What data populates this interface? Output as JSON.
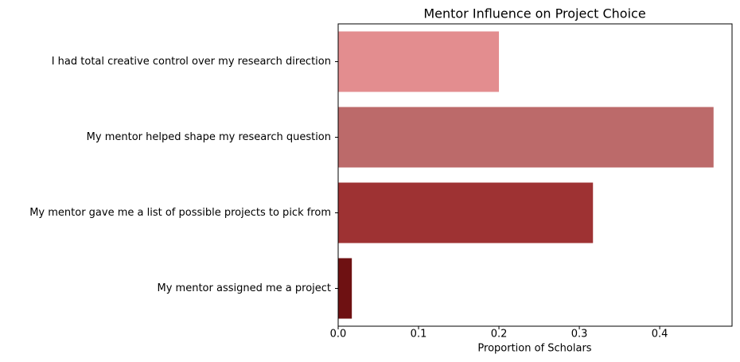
{
  "chart_data": {
    "type": "barh",
    "title": "Mentor Influence on Project Choice",
    "x_label": "Proportion of Scholars",
    "categories": [
      "I had total creative control over my research direction",
      "My mentor helped shape my research question",
      "My mentor gave me a list of possible projects to pick from",
      "My mentor assigned me a project"
    ],
    "values": [
      0.2,
      0.467,
      0.317,
      0.017
    ],
    "colors": [
      "#e38d8f",
      "#bc6a6a",
      "#9e3233",
      "#6e1112"
    ],
    "xlim": [
      0,
      0.49
    ],
    "xticks": [
      {
        "value": 0,
        "label": "0.0"
      },
      0.1,
      0.2,
      0.3,
      0.4
    ]
  }
}
